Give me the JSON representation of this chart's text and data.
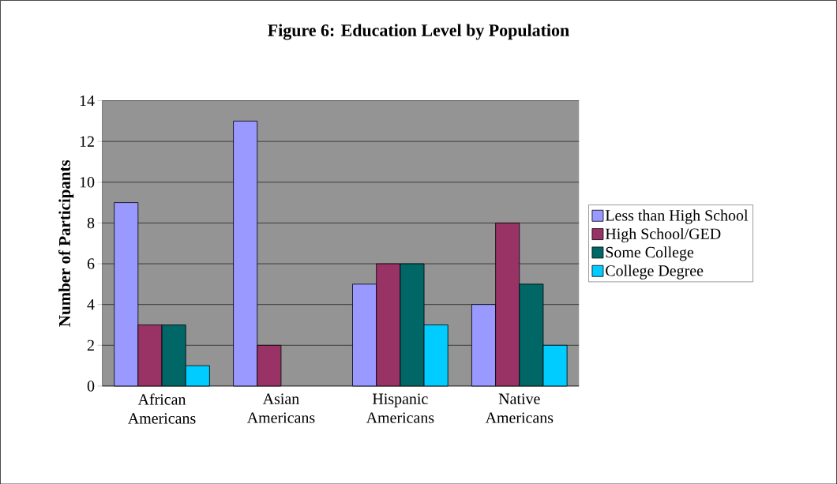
{
  "chart_data": {
    "type": "bar",
    "title": "Figure 6: Education Level by Population",
    "ylabel": "Number of Participants",
    "categories": [
      "African Americans",
      "Asian Americans",
      "Hispanic Americans",
      "Native Americans"
    ],
    "series": [
      {
        "name": "Less than High School",
        "color": "#9999ff",
        "values": [
          9,
          13,
          5,
          4
        ]
      },
      {
        "name": "High School/GED",
        "color": "#993366",
        "values": [
          3,
          2,
          6,
          8
        ]
      },
      {
        "name": "Some College",
        "color": "#006666",
        "values": [
          3,
          0,
          6,
          5
        ]
      },
      {
        "name": "College Degree",
        "color": "#00ccff",
        "values": [
          1,
          0,
          3,
          2
        ]
      }
    ],
    "ylim": [
      0,
      14
    ],
    "yticks": [
      0,
      2,
      4,
      6,
      8,
      10,
      12,
      14
    ],
    "grid": "y",
    "legend": "right"
  }
}
